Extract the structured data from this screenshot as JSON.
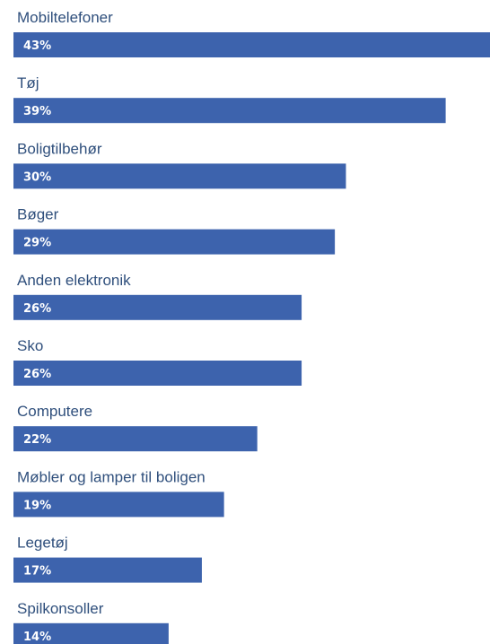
{
  "chart_data": {
    "type": "bar",
    "orientation": "horizontal",
    "categories": [
      "Mobiltelefoner",
      "Tøj",
      "Boligtilbehør",
      "Bøger",
      "Anden elektronik",
      "Sko",
      "Computere",
      "Møbler og lamper til boligen",
      "Legetøj",
      "Spilkonsoller"
    ],
    "values": [
      43,
      39,
      30,
      29,
      26,
      26,
      22,
      19,
      17,
      14
    ],
    "value_labels": [
      "43%",
      "39%",
      "30%",
      "29%",
      "26%",
      "26%",
      "22%",
      "19%",
      "17%",
      "14%"
    ],
    "unit": "%",
    "title": "",
    "xlabel": "",
    "ylabel": "",
    "xlim": [
      0,
      43
    ],
    "grid": false,
    "legend": "none",
    "bar_color": "#3d63ad",
    "label_color": "#2f4f7c",
    "value_label_color": "#ffffff"
  }
}
